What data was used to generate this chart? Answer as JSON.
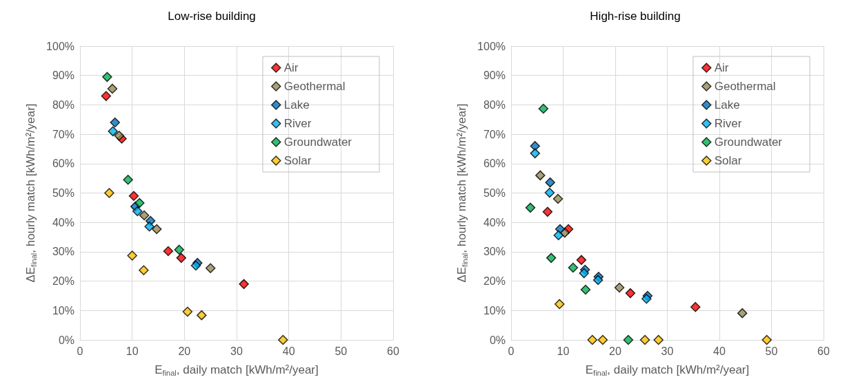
{
  "chart_data": [
    {
      "type": "scatter",
      "title": "Low-rise building",
      "xlabel": "E$_{final}$, daily match [kWh/m²/year]",
      "ylabel": "ΔE$_{final}$, hourly match [kWh/m²/year]",
      "xlim": [
        0,
        60
      ],
      "xticks": [
        0,
        10,
        20,
        30,
        40,
        50,
        60
      ],
      "ylim": [
        0,
        100
      ],
      "yticks": [
        {
          "value": 0,
          "label": "0%"
        },
        {
          "value": 10,
          "label": "10%"
        },
        {
          "value": 20,
          "label": "20%"
        },
        {
          "value": 30,
          "label": "30%"
        },
        {
          "value": 40,
          "label": "40%"
        },
        {
          "value": 50,
          "label": "50%"
        },
        {
          "value": 60,
          "label": "60%"
        },
        {
          "value": 70,
          "label": "70%"
        },
        {
          "value": 80,
          "label": "80%"
        },
        {
          "value": 90,
          "label": "90%"
        },
        {
          "value": 100,
          "label": "100%"
        }
      ],
      "grid": true,
      "legend": "top right",
      "marker": "diamond",
      "series": [
        {
          "name": "Air",
          "color": "#ff0000",
          "x": [
            5,
            8,
            10.3,
            16.9,
            19.4,
            31.4
          ],
          "values": [
            83,
            68.5,
            49,
            30.2,
            27.9,
            19
          ]
        },
        {
          "name": "Geothermal",
          "color": "#948a54",
          "x": [
            6.2,
            7.5,
            12.3,
            14.7,
            25
          ],
          "values": [
            85.5,
            69.5,
            42.4,
            37.7,
            24.4
          ]
        },
        {
          "name": "Lake",
          "color": "#0070c0",
          "x": [
            6.7,
            10.6,
            13.5,
            22.5
          ],
          "values": [
            74,
            45.4,
            40.5,
            26.2
          ]
        },
        {
          "name": "River",
          "color": "#00b0f0",
          "x": [
            6.3,
            11,
            13.3,
            22.2
          ],
          "values": [
            71,
            43.8,
            38.6,
            25.3
          ]
        },
        {
          "name": "Groundwater",
          "color": "#00b050",
          "x": [
            5.2,
            9.2,
            11.4,
            19
          ],
          "values": [
            89.5,
            54.5,
            46.6,
            30.7
          ]
        },
        {
          "name": "Solar",
          "color": "#ffc000",
          "x": [
            5.6,
            10,
            12.2,
            20.6,
            23.3,
            38.9
          ],
          "values": [
            50,
            28.7,
            23.7,
            9.6,
            8.4,
            0
          ]
        }
      ]
    },
    {
      "type": "scatter",
      "title": "High-rise building",
      "xlabel": "E$_{final}$, daily match [kWh/m²/year]",
      "ylabel": "ΔE$_{final}$, hourly match [kWh/m²/year]",
      "xlim": [
        0,
        60
      ],
      "xticks": [
        0,
        10,
        20,
        30,
        40,
        50,
        60
      ],
      "ylim": [
        0,
        100
      ],
      "yticks": [
        {
          "value": 0,
          "label": "0%"
        },
        {
          "value": 10,
          "label": "10%"
        },
        {
          "value": 20,
          "label": "20%"
        },
        {
          "value": 30,
          "label": "30%"
        },
        {
          "value": 40,
          "label": "40%"
        },
        {
          "value": 50,
          "label": "50%"
        },
        {
          "value": 60,
          "label": "60%"
        },
        {
          "value": 70,
          "label": "70%"
        },
        {
          "value": 80,
          "label": "80%"
        },
        {
          "value": 90,
          "label": "90%"
        },
        {
          "value": 100,
          "label": "100%"
        }
      ],
      "grid": true,
      "legend": "top right",
      "marker": "diamond",
      "series": [
        {
          "name": "Air",
          "color": "#ff0000",
          "x": [
            7,
            11,
            13.5,
            22.9,
            35.4
          ],
          "values": [
            43.6,
            37.7,
            27.2,
            15.9,
            11.2
          ]
        },
        {
          "name": "Geothermal",
          "color": "#948a54",
          "x": [
            5.6,
            9,
            10.3,
            20.8,
            44.4
          ],
          "values": [
            56,
            48,
            36.5,
            17.8,
            9.1
          ]
        },
        {
          "name": "Lake",
          "color": "#0070c0",
          "x": [
            4.6,
            7.5,
            9.4,
            14.2,
            16.8,
            26.2
          ],
          "values": [
            66,
            53.6,
            37.7,
            23.9,
            21.5,
            15
          ]
        },
        {
          "name": "River",
          "color": "#00b0f0",
          "x": [
            4.6,
            7.4,
            9.1,
            14,
            16.7,
            26
          ],
          "values": [
            63.5,
            50.1,
            35.6,
            22.7,
            20.4,
            14
          ]
        },
        {
          "name": "Groundwater",
          "color": "#00b050",
          "x": [
            6.2,
            3.7,
            7.7,
            11.9,
            14.3,
            22.5
          ],
          "values": [
            78.7,
            45,
            27.9,
            24.6,
            17.1,
            0
          ]
        },
        {
          "name": "Solar",
          "color": "#ffc000",
          "x": [
            9.3,
            15.6,
            17.6,
            25.7,
            28.3,
            49.1
          ],
          "values": [
            12.2,
            0,
            0,
            0,
            0,
            0
          ]
        }
      ]
    }
  ]
}
